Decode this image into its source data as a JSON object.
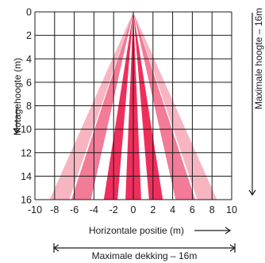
{
  "chart_data": {
    "type": "area",
    "x_label": "Horizontale positie (m)",
    "y_label": "Motagehoogte (m)",
    "xlim": [
      -10,
      10
    ],
    "ylim": [
      0,
      16
    ],
    "y_inverted": true,
    "x_ticks": [
      "-10",
      "-8",
      "-6",
      "-4",
      "-2",
      "0",
      "2",
      "4",
      "6",
      "8",
      "10"
    ],
    "y_ticks": [
      "0",
      "2",
      "4",
      "6",
      "8",
      "10",
      "12",
      "14",
      "16"
    ],
    "grid": true,
    "apex": [
      0,
      0
    ],
    "beams": [
      {
        "x_at_16": [
          -8.5,
          -6.5
        ],
        "color": "#f7b5c2"
      },
      {
        "x_at_16": [
          -6.3,
          -4.3
        ],
        "color": "#f27b98"
      },
      {
        "x_at_16": [
          -3.0,
          -1.6
        ],
        "color": "#ee2f5c"
      },
      {
        "x_at_16": [
          -0.8,
          0.8
        ],
        "color": "#ee2f5c"
      },
      {
        "x_at_16": [
          1.6,
          3.0
        ],
        "color": "#ee2f5c"
      },
      {
        "x_at_16": [
          4.3,
          6.3
        ],
        "color": "#f27b98"
      },
      {
        "x_at_16": [
          6.5,
          8.5
        ],
        "color": "#f7b5c2"
      }
    ],
    "coverage_label": "Maximale dekking – 16m",
    "height_label": "Maximale hoogte – 16m"
  }
}
